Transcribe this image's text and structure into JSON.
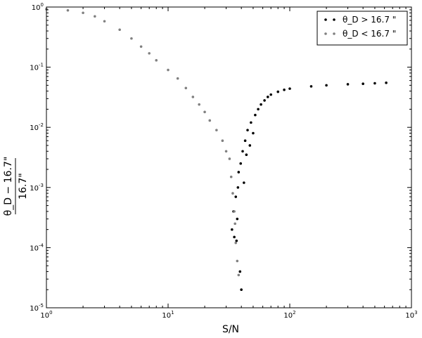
{
  "chart_data": {
    "type": "scatter",
    "x_scale": "log",
    "y_scale": "log",
    "xlim": [
      1,
      1000
    ],
    "ylim": [
      1e-05,
      1
    ],
    "x_ticks": [
      {
        "value": 1,
        "base": "10",
        "exp": "0"
      },
      {
        "value": 10,
        "base": "10",
        "exp": "1"
      },
      {
        "value": 100,
        "base": "10",
        "exp": "2"
      },
      {
        "value": 1000,
        "base": "10",
        "exp": "3"
      }
    ],
    "y_ticks": [
      {
        "value": 1e-05,
        "base": "10",
        "exp": "-5"
      },
      {
        "value": 0.0001,
        "base": "10",
        "exp": "-4"
      },
      {
        "value": 0.001,
        "base": "10",
        "exp": "-3"
      },
      {
        "value": 0.01,
        "base": "10",
        "exp": "-2"
      },
      {
        "value": 0.1,
        "base": "10",
        "exp": "-1"
      },
      {
        "value": 1,
        "base": "10",
        "exp": "0"
      }
    ],
    "xlabel": "S/N",
    "ylabel": {
      "numerator": "θ_D − 16.7\"",
      "denominator": "16.7\""
    },
    "grid": false,
    "legend_position": "top-right",
    "series": [
      {
        "name": "θ_D > 16.7 \"",
        "color": "#000000",
        "points": [
          [
            33.5,
            0.0002
          ],
          [
            34.5,
            0.0004
          ],
          [
            35,
            0.00015
          ],
          [
            36,
            0.0007
          ],
          [
            36.5,
            0.00013
          ],
          [
            37,
            0.0003
          ],
          [
            37.5,
            0.001
          ],
          [
            38,
            0.0018
          ],
          [
            39,
            4e-05
          ],
          [
            39.5,
            0.0025
          ],
          [
            40,
            2e-05
          ],
          [
            41,
            0.004
          ],
          [
            42,
            0.0012
          ],
          [
            43,
            0.006
          ],
          [
            44,
            0.0035
          ],
          [
            45,
            0.009
          ],
          [
            47,
            0.005
          ],
          [
            48,
            0.012
          ],
          [
            50,
            0.008
          ],
          [
            52,
            0.016
          ],
          [
            55,
            0.02
          ],
          [
            58,
            0.024
          ],
          [
            62,
            0.028
          ],
          [
            66,
            0.032
          ],
          [
            70,
            0.035
          ],
          [
            80,
            0.039
          ],
          [
            90,
            0.042
          ],
          [
            100,
            0.044
          ],
          [
            150,
            0.048
          ],
          [
            200,
            0.05
          ],
          [
            300,
            0.052
          ],
          [
            400,
            0.053
          ],
          [
            500,
            0.054
          ],
          [
            620,
            0.055
          ]
        ]
      },
      {
        "name": "θ_D < 16.7 \"",
        "color": "#808080",
        "points": [
          [
            1,
            0.92
          ],
          [
            1.5,
            0.88
          ],
          [
            2,
            0.8
          ],
          [
            2.5,
            0.7
          ],
          [
            3,
            0.58
          ],
          [
            4,
            0.42
          ],
          [
            5,
            0.3
          ],
          [
            6,
            0.22
          ],
          [
            7,
            0.17
          ],
          [
            8,
            0.13
          ],
          [
            10,
            0.09
          ],
          [
            12,
            0.065
          ],
          [
            14,
            0.045
          ],
          [
            16,
            0.032
          ],
          [
            18,
            0.024
          ],
          [
            20,
            0.018
          ],
          [
            22,
            0.013
          ],
          [
            25,
            0.009
          ],
          [
            28,
            0.006
          ],
          [
            30,
            0.004
          ],
          [
            32,
            0.003
          ],
          [
            33,
            0.0015
          ],
          [
            34,
            0.0008
          ],
          [
            35,
            0.0004
          ],
          [
            35.5,
            0.00025
          ],
          [
            36,
            0.00012
          ],
          [
            37,
            6e-05
          ],
          [
            38,
            3.5e-05
          ]
        ]
      }
    ]
  }
}
